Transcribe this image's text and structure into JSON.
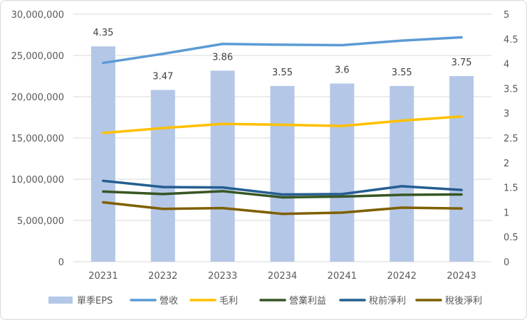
{
  "chart_data": {
    "type": "bar+line",
    "categories": [
      "20231",
      "20232",
      "20233",
      "20234",
      "20241",
      "20242",
      "20243"
    ],
    "bars": {
      "name": "單季EPS",
      "axis": "right",
      "color": "#b4c7e7",
      "values": [
        4.35,
        3.47,
        3.86,
        3.55,
        3.6,
        3.55,
        3.75
      ],
      "labels": [
        "4.35",
        "3.47",
        "3.86",
        "3.55",
        "3.6",
        "3.55",
        "3.75"
      ]
    },
    "series": [
      {
        "name": "營收",
        "axis": "left",
        "color": "#5b9bd5",
        "values": [
          24100000,
          25200000,
          26400000,
          26300000,
          26250000,
          26800000,
          27200000
        ]
      },
      {
        "name": "毛利",
        "axis": "left",
        "color": "#ffc000",
        "values": [
          15600000,
          16200000,
          16700000,
          16600000,
          16450000,
          17100000,
          17600000
        ]
      },
      {
        "name": "營業利益",
        "axis": "left",
        "color": "#375623",
        "values": [
          8500000,
          8200000,
          8550000,
          7800000,
          7900000,
          8100000,
          8150000
        ]
      },
      {
        "name": "稅前淨利",
        "axis": "left",
        "color": "#255e91",
        "values": [
          9800000,
          9050000,
          9000000,
          8150000,
          8200000,
          9150000,
          8700000
        ]
      },
      {
        "name": "稅後淨利",
        "axis": "left",
        "color": "#7f6000",
        "values": [
          7200000,
          6400000,
          6500000,
          5800000,
          5950000,
          6550000,
          6450000
        ]
      }
    ],
    "y_left": {
      "min": 0,
      "max": 30000000,
      "ticks": [
        0,
        5000000,
        10000000,
        15000000,
        20000000,
        25000000,
        30000000
      ],
      "tick_labels": [
        "0",
        "5,000,000",
        "10,000,000",
        "15,000,000",
        "20,000,000",
        "25,000,000",
        "30,000,000"
      ]
    },
    "y_right": {
      "min": 0,
      "max": 5,
      "ticks": [
        0,
        0.5,
        1,
        1.5,
        2,
        2.5,
        3,
        3.5,
        4,
        4.5,
        5
      ],
      "tick_labels": [
        "0",
        "0.5",
        "1",
        "1.5",
        "2",
        "2.5",
        "3",
        "3.5",
        "4",
        "4.5",
        "5"
      ]
    },
    "grid": true,
    "legend": {
      "position": "bottom",
      "entries": [
        {
          "name": "單季EPS",
          "kind": "bar",
          "color": "#b4c7e7"
        },
        {
          "name": "營收",
          "kind": "line",
          "color": "#5b9bd5"
        },
        {
          "name": "毛利",
          "kind": "line",
          "color": "#ffc000"
        },
        {
          "name": "營業利益",
          "kind": "line",
          "color": "#375623"
        },
        {
          "name": "稅前淨利",
          "kind": "line",
          "color": "#255e91"
        },
        {
          "name": "稅後淨利",
          "kind": "line",
          "color": "#7f6000"
        }
      ]
    }
  }
}
